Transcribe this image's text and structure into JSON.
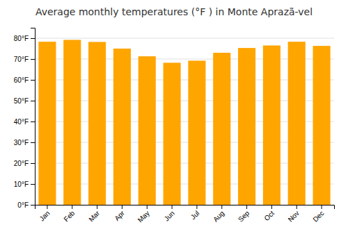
{
  "chart_data": {
    "type": "bar",
    "title": "Average monthly temperatures (°F ) in Monte Aprazã-vel",
    "categories": [
      "Jan",
      "Feb",
      "Mar",
      "Apr",
      "May",
      "Jun",
      "Jul",
      "Aug",
      "Sep",
      "Oct",
      "Nov",
      "Dec"
    ],
    "values": [
      78.3,
      79.2,
      78.2,
      75.0,
      71.3,
      68.2,
      69.2,
      73.0,
      75.3,
      76.5,
      78.3,
      76.3
    ],
    "color": "#FFA500",
    "ylim": [
      0,
      85
    ],
    "yticks": [
      {
        "value": 0,
        "label": "0°F"
      },
      {
        "value": 10,
        "label": "10°F"
      },
      {
        "value": 20,
        "label": "20°F"
      },
      {
        "value": 30,
        "label": "30°F"
      },
      {
        "value": 40,
        "label": "40°F"
      },
      {
        "value": 50,
        "label": "50°F"
      },
      {
        "value": 60,
        "label": "60°F"
      },
      {
        "value": 70,
        "label": "70°F"
      },
      {
        "value": 80,
        "label": "80°F"
      }
    ],
    "grid": true
  }
}
